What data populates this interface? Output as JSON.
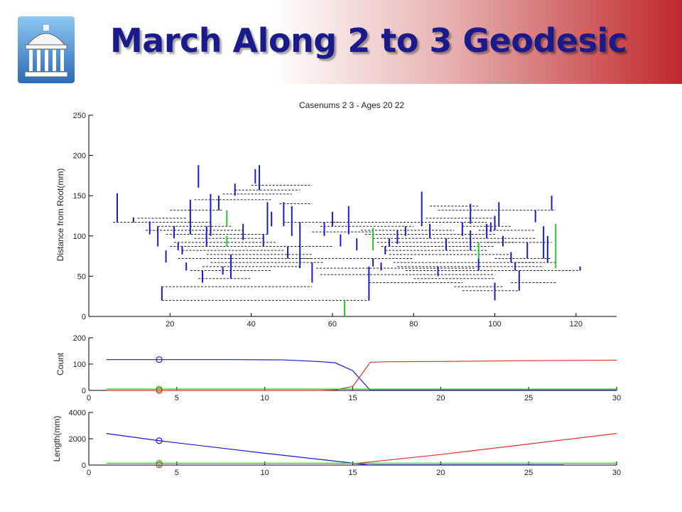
{
  "slide": {
    "title": "March Along 2 to 3 Geodesic"
  },
  "logo": {
    "icon": "dome-building-icon"
  },
  "colors": {
    "title": "#1a1a8c",
    "blue": "#1a1acc",
    "green": "#22cc22",
    "red": "#e03030",
    "dashed": "#222222"
  },
  "chart_data": [
    {
      "type": "tree",
      "title": "Casenums 2 3 - Ages 20 22",
      "xlabel": "",
      "ylabel": "Distance from Root(mm)",
      "xlim": [
        0,
        130
      ],
      "ylim": [
        0,
        250
      ],
      "xticks": [
        20,
        40,
        60,
        80,
        100,
        120
      ],
      "yticks": [
        0,
        50,
        100,
        150,
        200,
        250
      ],
      "root": {
        "x": 63,
        "y0": 0,
        "y1": 20,
        "color": "green"
      },
      "dashed_connectors": [
        [
          18,
          20,
          69,
          20
        ],
        [
          18,
          37,
          55,
          37
        ],
        [
          27,
          47,
          40,
          47
        ],
        [
          25,
          57,
          45,
          57
        ],
        [
          28,
          62,
          52,
          62
        ],
        [
          30,
          67,
          58,
          67
        ],
        [
          22,
          72,
          55,
          72
        ],
        [
          29,
          77,
          55,
          77
        ],
        [
          23,
          82,
          48,
          82
        ],
        [
          20,
          87,
          60,
          87
        ],
        [
          21,
          92,
          46,
          92
        ],
        [
          26,
          97,
          43,
          97
        ],
        [
          19,
          102,
          44,
          102
        ],
        [
          14,
          107,
          38,
          107
        ],
        [
          17,
          112,
          35,
          112
        ],
        [
          6,
          117,
          30,
          117
        ],
        [
          12,
          122,
          24,
          122
        ],
        [
          20,
          132,
          33,
          132
        ],
        [
          26,
          145,
          45,
          145
        ],
        [
          33,
          152,
          50,
          152
        ],
        [
          36,
          157,
          52,
          157
        ],
        [
          40,
          163,
          55,
          163
        ],
        [
          47,
          140,
          55,
          140
        ],
        [
          48,
          117,
          62,
          117
        ],
        [
          55,
          105,
          70,
          105
        ],
        [
          57,
          112,
          80,
          112
        ],
        [
          60,
          117,
          98,
          117
        ],
        [
          52,
          72,
          80,
          72
        ],
        [
          56,
          60,
          95,
          60
        ],
        [
          57,
          52,
          100,
          52
        ],
        [
          69,
          42,
          92,
          42
        ],
        [
          67,
          107,
          90,
          107
        ],
        [
          68,
          102,
          100,
          102
        ],
        [
          70,
          97,
          110,
          97
        ],
        [
          71,
          92,
          105,
          92
        ],
        [
          72,
          87,
          100,
          87
        ],
        [
          73,
          82,
          98,
          82
        ],
        [
          74,
          77,
          104,
          77
        ],
        [
          75,
          67,
          110,
          67
        ],
        [
          76,
          62,
          112,
          62
        ],
        [
          78,
          57,
          108,
          57
        ],
        [
          80,
          47,
          100,
          47
        ],
        [
          83,
          122,
          100,
          122
        ],
        [
          86,
          132,
          115,
          132
        ],
        [
          84,
          137,
          96,
          137
        ],
        [
          92,
          112,
          104,
          112
        ],
        [
          96,
          107,
          110,
          107
        ],
        [
          98,
          92,
          114,
          92
        ],
        [
          100,
          72,
          114,
          72
        ],
        [
          92,
          32,
          106,
          32
        ],
        [
          90,
          37,
          102,
          37
        ],
        [
          104,
          67,
          115,
          67
        ],
        [
          106,
          57,
          121,
          57
        ],
        [
          104,
          42,
          115,
          42
        ]
      ],
      "blue_branches": [
        [
          7,
          117,
          153
        ],
        [
          11,
          117,
          123
        ],
        [
          15,
          102,
          118
        ],
        [
          17,
          87,
          112
        ],
        [
          18,
          20,
          37
        ],
        [
          19,
          67,
          82
        ],
        [
          21,
          97,
          112
        ],
        [
          22,
          82,
          92
        ],
        [
          23,
          77,
          87
        ],
        [
          24,
          57,
          67
        ],
        [
          25,
          102,
          145
        ],
        [
          27,
          160,
          188
        ],
        [
          28,
          42,
          57
        ],
        [
          29,
          87,
          112
        ],
        [
          30,
          100,
          152
        ],
        [
          32,
          132,
          150
        ],
        [
          33,
          52,
          62
        ],
        [
          35,
          47,
          77
        ],
        [
          36,
          150,
          165
        ],
        [
          38,
          95,
          115
        ],
        [
          41,
          165,
          183
        ],
        [
          42,
          157,
          188
        ],
        [
          43,
          87,
          102
        ],
        [
          44,
          102,
          142
        ],
        [
          45,
          112,
          130
        ],
        [
          48,
          112,
          142
        ],
        [
          49,
          72,
          87
        ],
        [
          50,
          100,
          137
        ],
        [
          52,
          60,
          117
        ],
        [
          55,
          42,
          67
        ],
        [
          58,
          100,
          117
        ],
        [
          60,
          112,
          130
        ],
        [
          62,
          87,
          102
        ],
        [
          64,
          102,
          137
        ],
        [
          66,
          82,
          97
        ],
        [
          69,
          20,
          62
        ],
        [
          70,
          62,
          72
        ],
        [
          72,
          57,
          67
        ],
        [
          73,
          77,
          87
        ],
        [
          74,
          87,
          97
        ],
        [
          76,
          90,
          107
        ],
        [
          78,
          100,
          112
        ],
        [
          82,
          112,
          155
        ],
        [
          84,
          97,
          115
        ],
        [
          86,
          50,
          62
        ],
        [
          88,
          82,
          97
        ],
        [
          92,
          100,
          117
        ],
        [
          94,
          82,
          107
        ],
        [
          96,
          57,
          72
        ],
        [
          98,
          97,
          115
        ],
        [
          99,
          105,
          117
        ],
        [
          100,
          20,
          42
        ],
        [
          101,
          112,
          142
        ],
        [
          102,
          87,
          100
        ],
        [
          104,
          67,
          80
        ],
        [
          105,
          57,
          67
        ],
        [
          106,
          32,
          57
        ],
        [
          108,
          72,
          92
        ],
        [
          110,
          117,
          132
        ],
        [
          112,
          72,
          112
        ],
        [
          113,
          67,
          100
        ],
        [
          121,
          57,
          62
        ],
        [
          94,
          115,
          140
        ],
        [
          100,
          107,
          125
        ],
        [
          114,
          132,
          150
        ]
      ],
      "green_branches": [
        [
          34,
          112,
          132
        ],
        [
          34,
          87,
          100
        ],
        [
          70,
          82,
          110
        ],
        [
          96,
          72,
          92
        ],
        [
          115,
          60,
          115
        ]
      ]
    },
    {
      "type": "line",
      "ylabel": "Count",
      "xlim": [
        0,
        30
      ],
      "ylim": [
        0,
        200
      ],
      "xticks": [
        0,
        5,
        10,
        15,
        20,
        25,
        30
      ],
      "yticks": [
        0,
        100,
        200
      ],
      "marker_x": 4,
      "series": [
        {
          "color": "blue",
          "x": [
            1,
            4,
            8,
            11,
            13,
            14,
            15,
            16
          ],
          "y": [
            117,
            117,
            117,
            116,
            110,
            105,
            75,
            0
          ]
        },
        {
          "color": "red",
          "x": [
            1,
            13,
            14,
            15,
            16,
            17,
            20,
            25,
            30
          ],
          "y": [
            0,
            0,
            2,
            15,
            107,
            109,
            110,
            113,
            115
          ]
        },
        {
          "color": "green",
          "x": [
            1,
            30
          ],
          "y": [
            5,
            5
          ]
        },
        {
          "color": "darkblue",
          "x": [
            16,
            30
          ],
          "y": [
            1,
            1
          ]
        }
      ],
      "markers": [
        {
          "color": "blue",
          "x": 4,
          "y": 117
        },
        {
          "color": "green",
          "x": 4,
          "y": 5
        },
        {
          "color": "red",
          "x": 4,
          "y": 0
        }
      ]
    },
    {
      "type": "line",
      "ylabel": "Length(mm)",
      "xlim": [
        0,
        30
      ],
      "ylim": [
        0,
        4000
      ],
      "xticks": [
        0,
        5,
        10,
        15,
        20,
        25,
        30
      ],
      "yticks": [
        0,
        2000,
        4000
      ],
      "marker_x": 4,
      "series": [
        {
          "color": "blue",
          "x": [
            1,
            4,
            10,
            15,
            16
          ],
          "y": [
            2400,
            1850,
            900,
            150,
            0
          ]
        },
        {
          "color": "red",
          "x": [
            15,
            20,
            25,
            30
          ],
          "y": [
            100,
            800,
            1600,
            2400
          ]
        },
        {
          "color": "green",
          "x": [
            1,
            30
          ],
          "y": [
            140,
            140
          ]
        },
        {
          "color": "darkblue",
          "x": [
            16,
            27
          ],
          "y": [
            20,
            20
          ]
        }
      ],
      "markers": [
        {
          "color": "blue",
          "x": 4,
          "y": 1850
        },
        {
          "color": "green",
          "x": 4,
          "y": 140
        },
        {
          "color": "red",
          "x": 4,
          "y": 20
        }
      ]
    }
  ]
}
